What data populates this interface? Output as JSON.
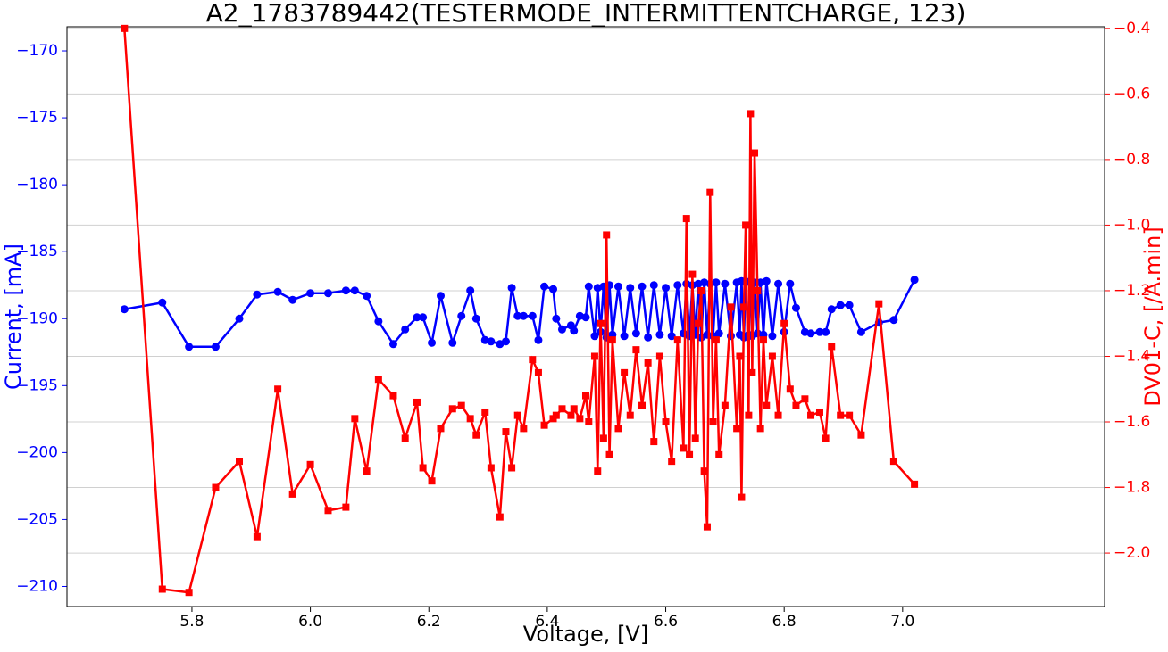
{
  "chart_data": {
    "type": "line",
    "title": "A2_1783789442(TESTERMODE_INTERMITTENTCHARGE, 123)",
    "xlabel": "Voltage, [V]",
    "ylabel": "Current, [mA]",
    "y2label": "DV01-C, [/A.min]",
    "x": [
      5.686,
      5.75,
      5.795,
      5.84,
      5.88,
      5.91,
      5.945,
      5.97,
      6.0,
      6.03,
      6.06,
      6.075,
      6.095,
      6.115,
      6.14,
      6.16,
      6.18,
      6.19,
      6.205,
      6.22,
      6.24,
      6.255,
      6.27,
      6.28,
      6.295,
      6.305,
      6.32,
      6.33,
      6.34,
      6.35,
      6.36,
      6.375,
      6.385,
      6.395,
      6.41,
      6.415,
      6.425,
      6.44,
      6.445,
      6.455,
      6.465,
      6.47,
      6.48,
      6.485,
      6.49,
      6.495,
      6.5,
      6.505,
      6.51,
      6.52,
      6.53,
      6.54,
      6.55,
      6.56,
      6.57,
      6.58,
      6.59,
      6.6,
      6.61,
      6.62,
      6.63,
      6.635,
      6.64,
      6.645,
      6.65,
      6.655,
      6.66,
      6.665,
      6.67,
      6.675,
      6.68,
      6.685,
      6.69,
      6.7,
      6.71,
      6.72,
      6.725,
      6.728,
      6.732,
      6.735,
      6.74,
      6.743,
      6.746,
      6.75,
      6.755,
      6.76,
      6.765,
      6.77,
      6.78,
      6.79,
      6.8,
      6.81,
      6.82,
      6.835,
      6.845,
      6.86,
      6.87,
      6.88,
      6.895,
      6.91,
      6.93,
      6.96,
      6.985,
      7.02
    ],
    "series": [
      {
        "name": "Current, [mA]",
        "color": "#0000ff",
        "marker": "circle",
        "values": [
          -189.3,
          -188.8,
          -192.1,
          -192.1,
          -190.0,
          -188.2,
          -188.0,
          -188.6,
          -188.1,
          -188.1,
          -187.9,
          -187.9,
          -188.3,
          -190.2,
          -191.9,
          -190.8,
          -189.9,
          -189.9,
          -191.8,
          -188.3,
          -191.8,
          -189.8,
          -187.9,
          -190.0,
          -191.6,
          -191.7,
          -191.9,
          -191.7,
          -187.7,
          -189.8,
          -189.8,
          -189.8,
          -191.6,
          -187.6,
          -187.8,
          -190.0,
          -190.8,
          -190.5,
          -190.9,
          -189.8,
          -189.9,
          -187.6,
          -191.3,
          -187.7,
          -191.0,
          -187.6,
          -191.4,
          -187.5,
          -191.2,
          -187.6,
          -191.3,
          -187.7,
          -191.1,
          -187.6,
          -191.4,
          -187.5,
          -191.2,
          -187.7,
          -191.3,
          -187.5,
          -191.1,
          -187.4,
          -191.3,
          -187.5,
          -191.2,
          -187.4,
          -191.4,
          -187.3,
          -191.2,
          -187.4,
          -191.3,
          -187.3,
          -191.1,
          -187.4,
          -191.3,
          -187.3,
          -191.2,
          -187.2,
          -191.4,
          -187.3,
          -191.2,
          -187.2,
          -191.3,
          -187.3,
          -191.1,
          -187.3,
          -191.2,
          -187.2,
          -191.3,
          -187.4,
          -191.0,
          -187.4,
          -189.2,
          -191.0,
          -191.1,
          -191.0,
          -191.0,
          -189.3,
          -189.0,
          -189.0,
          -191.0,
          -190.3,
          -190.1,
          -187.1
        ]
      },
      {
        "name": "DV01-C, [/A.min]",
        "color": "#ff0000",
        "marker": "square",
        "axis": "y2",
        "values": [
          -0.4,
          -2.11,
          -2.12,
          -1.8,
          -1.72,
          -1.95,
          -1.5,
          -1.82,
          -1.73,
          -1.87,
          -1.86,
          -1.59,
          -1.75,
          -1.47,
          -1.52,
          -1.65,
          -1.54,
          -1.74,
          -1.78,
          -1.62,
          -1.56,
          -1.55,
          -1.59,
          -1.64,
          -1.57,
          -1.74,
          -1.89,
          -1.63,
          -1.74,
          -1.58,
          -1.62,
          -1.41,
          -1.45,
          -1.61,
          -1.59,
          -1.58,
          -1.56,
          -1.58,
          -1.56,
          -1.59,
          -1.52,
          -1.6,
          -1.4,
          -1.75,
          -1.3,
          -1.65,
          -1.03,
          -1.7,
          -1.35,
          -1.62,
          -1.45,
          -1.58,
          -1.38,
          -1.55,
          -1.42,
          -1.66,
          -1.4,
          -1.6,
          -1.72,
          -1.35,
          -1.68,
          -0.98,
          -1.7,
          -1.15,
          -1.65,
          -1.3,
          -1.2,
          -1.75,
          -1.92,
          -0.9,
          -1.6,
          -1.35,
          -1.7,
          -1.55,
          -1.25,
          -1.62,
          -1.4,
          -1.83,
          -1.25,
          -1.0,
          -1.58,
          -0.66,
          -1.45,
          -0.78,
          -1.2,
          -1.62,
          -1.35,
          -1.55,
          -1.4,
          -1.58,
          -1.3,
          -1.5,
          -1.55,
          -1.53,
          -1.58,
          -1.57,
          -1.65,
          -1.37,
          -1.58,
          -1.58,
          -1.64,
          -1.24,
          -1.72,
          -1.79
        ]
      }
    ],
    "xlim": [
      5.589,
      7.341
    ],
    "xticks": [
      5.8,
      {
        "value": 6,
        "label": "6.0"
      },
      6.2,
      6.4,
      6.6,
      6.8,
      {
        "value": 7,
        "label": "7.0"
      }
    ],
    "ylim": [
      -211.5,
      -168.2
    ],
    "yticks": [
      {
        "value": -210,
        "label": "−210"
      },
      {
        "value": -205,
        "label": "−205"
      },
      {
        "value": -200,
        "label": "−200"
      },
      {
        "value": -195,
        "label": "−195"
      },
      {
        "value": -190,
        "label": "−190"
      },
      {
        "value": -185,
        "label": "−185"
      },
      {
        "value": -180,
        "label": "−180"
      },
      {
        "value": -175,
        "label": "−175"
      },
      {
        "value": -170,
        "label": "−170"
      }
    ],
    "y2lim": [
      -2.163,
      -0.395
    ],
    "y2ticks": [
      {
        "value": -2.0,
        "label": "−2.0"
      },
      {
        "value": -1.8,
        "label": "−1.8"
      },
      {
        "value": -1.6,
        "label": "−1.6"
      },
      {
        "value": -1.4,
        "label": "−1.4"
      },
      {
        "value": -1.2,
        "label": "−1.2"
      },
      {
        "value": -1.0,
        "label": "−1.0"
      },
      {
        "value": -0.8,
        "label": "−0.8"
      },
      {
        "value": -0.6,
        "label": "−0.6"
      },
      {
        "value": -0.4,
        "label": "−0.4"
      }
    ],
    "grid": "y2"
  }
}
